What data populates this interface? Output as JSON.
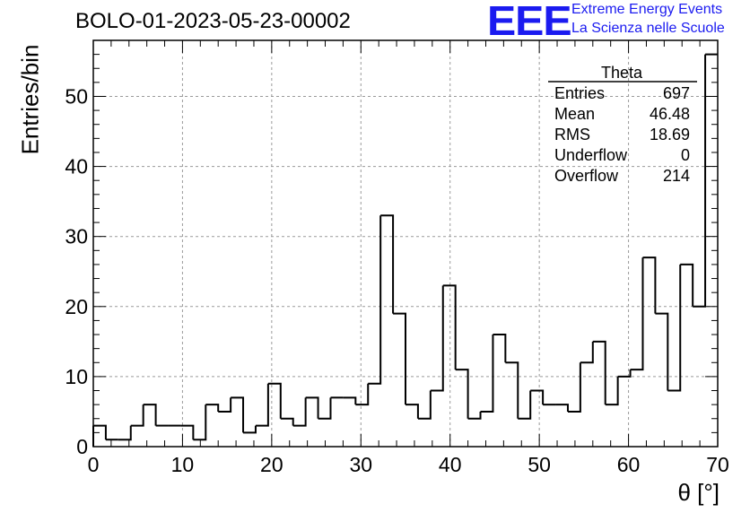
{
  "chart_data": {
    "type": "bar",
    "title": "BOLO-01-2023-05-23-00002",
    "xlabel": "θ [°]",
    "ylabel": "Entries/bin",
    "xlim": [
      0,
      70
    ],
    "ylim": [
      0,
      58
    ],
    "x_ticks": [
      0,
      10,
      20,
      30,
      40,
      50,
      60,
      70
    ],
    "y_ticks": [
      0,
      10,
      20,
      30,
      40,
      50
    ],
    "grid": true,
    "bin_width": 1.4,
    "values": [
      3,
      1,
      1,
      3,
      6,
      3,
      3,
      3,
      1,
      6,
      5,
      7,
      2,
      3,
      9,
      4,
      3,
      7,
      4,
      7,
      7,
      6,
      9,
      33,
      19,
      6,
      4,
      8,
      23,
      11,
      4,
      5,
      16,
      12,
      4,
      8,
      6,
      6,
      5,
      12,
      15,
      6,
      10,
      11,
      27,
      19,
      8,
      26,
      20,
      56
    ],
    "stats_box": {
      "title": "Theta",
      "rows": [
        {
          "label": "Entries",
          "value": "697"
        },
        {
          "label": "Mean",
          "value": "46.48"
        },
        {
          "label": "RMS",
          "value": "18.69"
        },
        {
          "label": "Underflow",
          "value": "0"
        },
        {
          "label": "Overflow",
          "value": "214"
        }
      ]
    }
  },
  "logo": {
    "mark": "EEE",
    "line1": "Extreme Energy Events",
    "line2": "La Scienza nelle Scuole",
    "color": "#1b1bf0"
  }
}
